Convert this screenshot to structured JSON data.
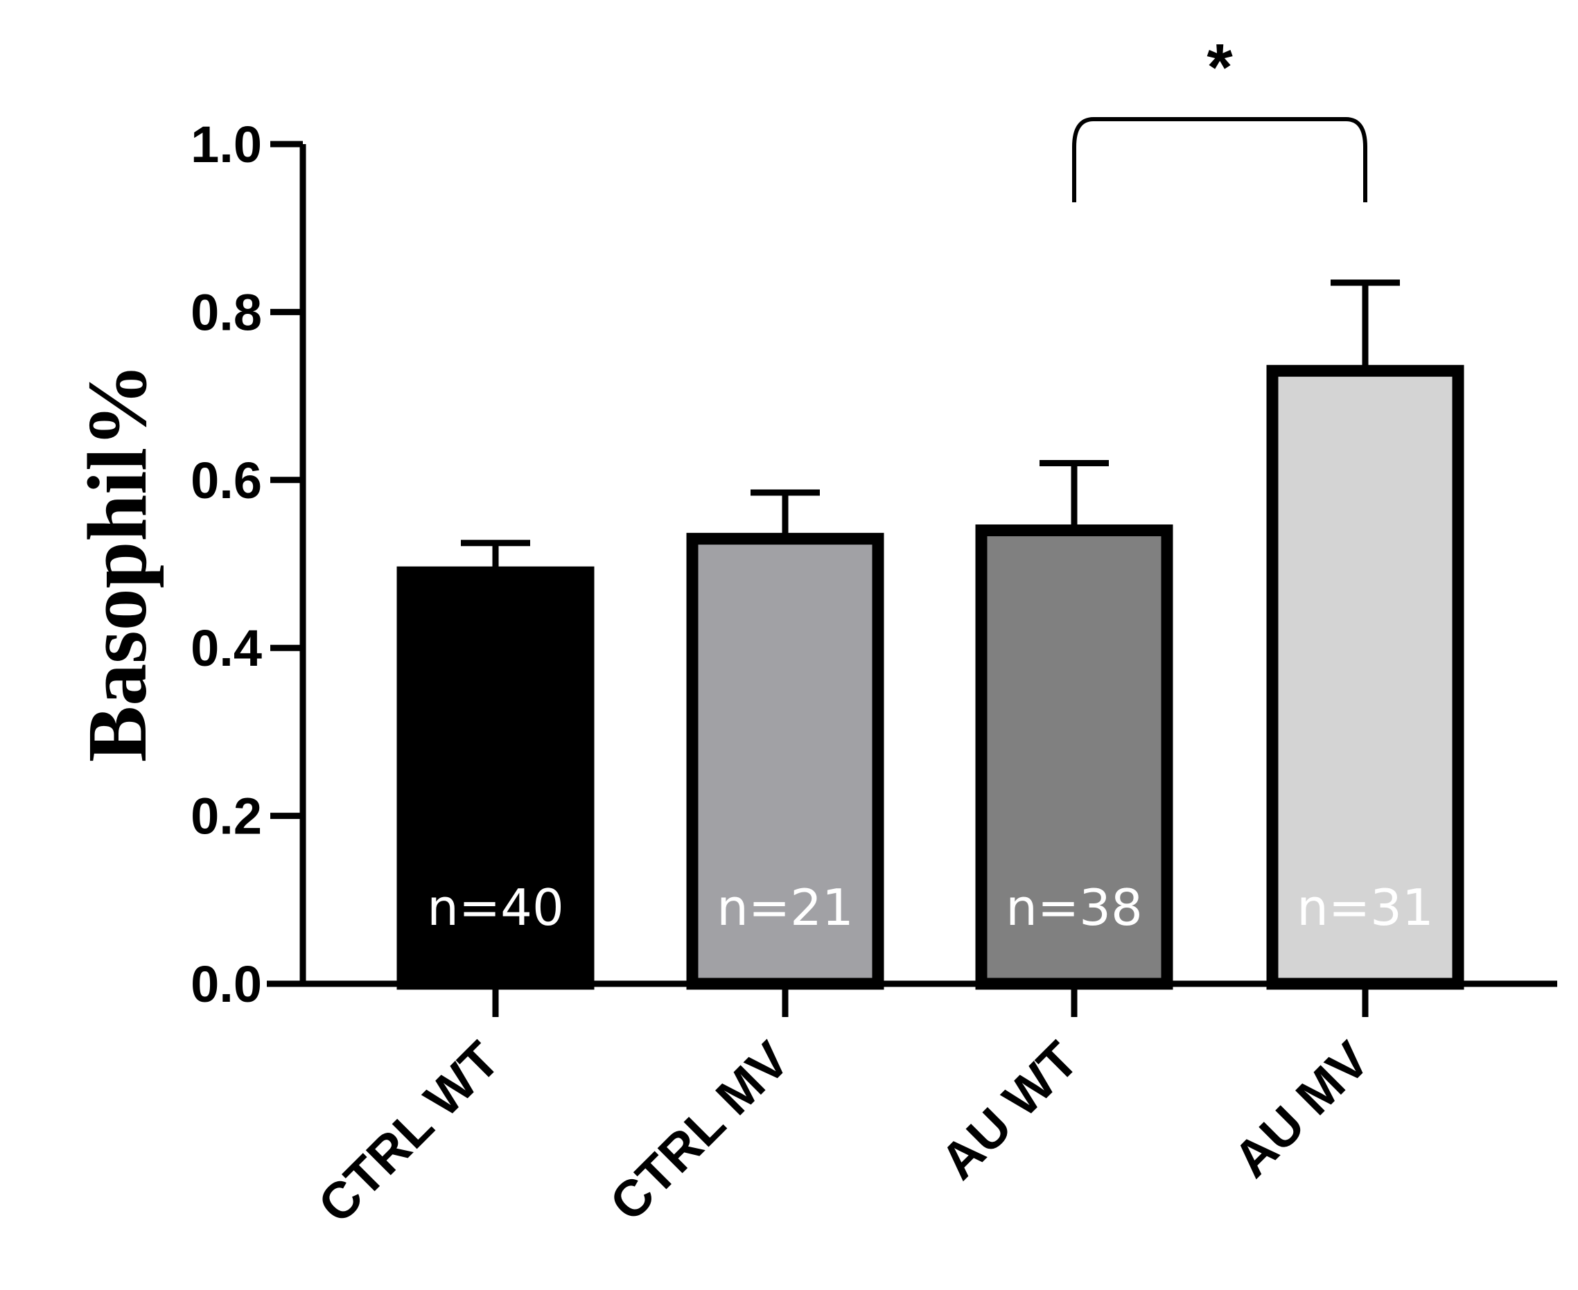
{
  "chart_data": {
    "type": "bar",
    "categories": [
      "CTRL WT",
      "CTRL MV",
      "AU WT",
      "AU MV"
    ],
    "values": [
      0.49,
      0.53,
      0.54,
      0.73
    ],
    "errors": [
      0.035,
      0.055,
      0.08,
      0.105
    ],
    "annotations": [
      "n=40",
      "n=21",
      "n=38",
      "n=31"
    ],
    "bar_colors": [
      "#000000",
      "#a1a1a5",
      "#808080",
      "#d4d4d4"
    ],
    "annotation_colors": [
      "#ffffff",
      "#ffffff",
      "#ffffff",
      "#ffffff"
    ],
    "ylabel": "Basophil%",
    "xlabel": "",
    "ylim": [
      0,
      1.0
    ],
    "yticks": [
      "0.0",
      "0.2",
      "0.4",
      "0.6",
      "0.8",
      "1.0"
    ],
    "significance": {
      "between": [
        "AU WT",
        "AU MV"
      ],
      "label": "*"
    },
    "grid": false,
    "legend": "none"
  }
}
